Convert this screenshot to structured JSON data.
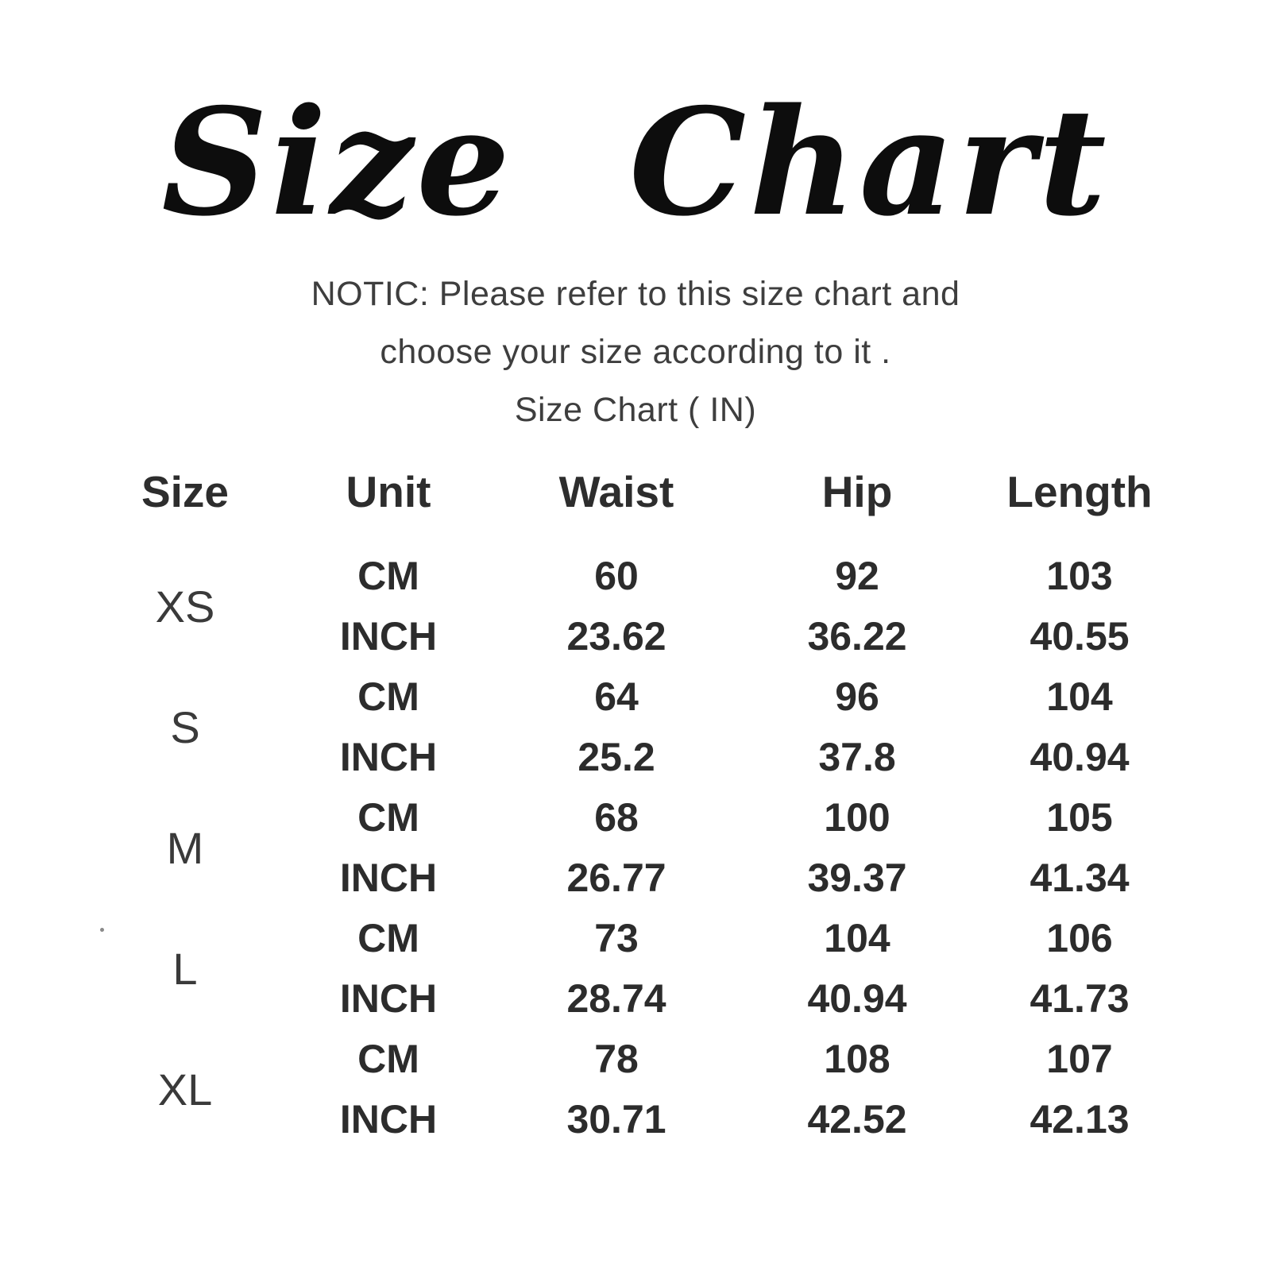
{
  "title": "Size Chart",
  "notice": {
    "line1": "NOTIC: Please refer to this size chart and",
    "line2": "choose your size according to it .",
    "line3": "Size Chart ( IN)"
  },
  "colors": {
    "background": "#ffffff",
    "title_text": "#0d0d0d",
    "notice_text": "#3e3e3e",
    "table_text": "#2c2c2c"
  },
  "chart_data": {
    "type": "table",
    "title": "Size Chart ( IN)",
    "columns": [
      "Size",
      "Unit",
      "Waist",
      "Hip",
      "Length"
    ],
    "unit_labels": {
      "cm": "CM",
      "inch": "INCH"
    },
    "sizes": [
      {
        "size": "XS",
        "cm": {
          "waist": "60",
          "hip": "92",
          "length": "103"
        },
        "inch": {
          "waist": "23.62",
          "hip": "36.22",
          "length": "40.55"
        }
      },
      {
        "size": "S",
        "cm": {
          "waist": "64",
          "hip": "96",
          "length": "104"
        },
        "inch": {
          "waist": "25.2",
          "hip": "37.8",
          "length": "40.94"
        }
      },
      {
        "size": "M",
        "cm": {
          "waist": "68",
          "hip": "100",
          "length": "105"
        },
        "inch": {
          "waist": "26.77",
          "hip": "39.37",
          "length": "41.34"
        }
      },
      {
        "size": "L",
        "cm": {
          "waist": "73",
          "hip": "104",
          "length": "106"
        },
        "inch": {
          "waist": "28.74",
          "hip": "40.94",
          "length": "41.73"
        }
      },
      {
        "size": "XL",
        "cm": {
          "waist": "78",
          "hip": "108",
          "length": "107"
        },
        "inch": {
          "waist": "30.71",
          "hip": "42.52",
          "length": "42.13"
        }
      }
    ]
  }
}
